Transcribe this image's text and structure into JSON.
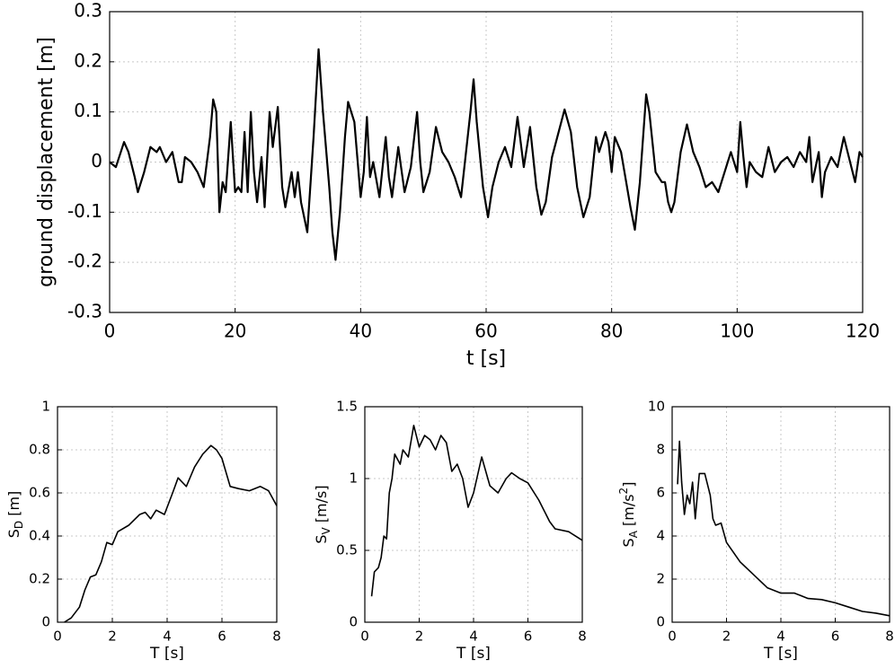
{
  "chart_data": [
    {
      "type": "line",
      "xlabel": "t [s]",
      "ylabel": "ground displacement [m]",
      "color": "#000000",
      "grid": true,
      "xlim": [
        0,
        120
      ],
      "xticks": [
        0,
        20,
        40,
        60,
        80,
        100,
        120
      ],
      "ylim": [
        -0.3,
        0.3
      ],
      "yticks": [
        -0.3,
        -0.2,
        -0.1,
        0,
        0.1,
        0.2,
        0.3
      ],
      "x": [
        0,
        1,
        2.3,
        3,
        4,
        4.5,
        5.5,
        6.5,
        7.5,
        8,
        9,
        10,
        11,
        11.5,
        12,
        13,
        14,
        15,
        16,
        16.5,
        17,
        17.5,
        18,
        18.5,
        19.3,
        20,
        20.5,
        21,
        21.5,
        22,
        22.5,
        23,
        23.5,
        24.2,
        24.7,
        25.5,
        26,
        26.8,
        27.5,
        28,
        29,
        29.5,
        30,
        30.5,
        31.5,
        32.5,
        33.3,
        34,
        35,
        35.5,
        36,
        36.7,
        37.5,
        38,
        39,
        40,
        40.5,
        41,
        41.5,
        42,
        43,
        44,
        44.5,
        45,
        46,
        47,
        48,
        49,
        49.5,
        50,
        51,
        52,
        53,
        54,
        55,
        56,
        57.5,
        58,
        58.5,
        59.5,
        60.3,
        61,
        62,
        63,
        64,
        65,
        66,
        67,
        68,
        68.8,
        69.5,
        70.5,
        72.5,
        73.5,
        74.5,
        75.5,
        76.5,
        77.5,
        78,
        79,
        79.5,
        80,
        80.5,
        81.5,
        83,
        83.7,
        84.5,
        85.5,
        86,
        87,
        88,
        88.5,
        89,
        89.5,
        90,
        90.5,
        91,
        92,
        93,
        94,
        95,
        96,
        97,
        98,
        99,
        100,
        100.5,
        101,
        101.5,
        102,
        103,
        104,
        105,
        106,
        107,
        108,
        109,
        110,
        111,
        111.5,
        112,
        113,
        113.5,
        114,
        115,
        116,
        117,
        118,
        118.8,
        119.5,
        120
      ],
      "values": [
        0,
        -0.01,
        0.04,
        0.02,
        -0.03,
        -0.06,
        -0.02,
        0.03,
        0.02,
        0.03,
        0,
        0.02,
        -0.04,
        -0.04,
        0.01,
        0,
        -0.02,
        -0.05,
        0.05,
        0.125,
        0.1,
        -0.1,
        -0.04,
        -0.06,
        0.08,
        -0.06,
        -0.05,
        -0.06,
        0.06,
        -0.06,
        0.1,
        -0.02,
        -0.08,
        0.01,
        -0.09,
        0.1,
        0.03,
        0.11,
        -0.05,
        -0.09,
        -0.02,
        -0.07,
        -0.02,
        -0.08,
        -0.14,
        0.05,
        0.225,
        0.1,
        -0.05,
        -0.14,
        -0.195,
        -0.1,
        0.05,
        0.12,
        0.08,
        -0.07,
        -0.02,
        0.09,
        -0.03,
        0,
        -0.07,
        0.05,
        -0.03,
        -0.07,
        0.03,
        -0.06,
        -0.01,
        0.1,
        0,
        -0.06,
        -0.02,
        0.07,
        0.02,
        0,
        -0.03,
        -0.07,
        0.1,
        0.165,
        0.08,
        -0.05,
        -0.11,
        -0.05,
        0,
        0.03,
        -0.01,
        0.09,
        -0.01,
        0.07,
        -0.05,
        -0.105,
        -0.08,
        0.01,
        0.105,
        0.06,
        -0.05,
        -0.11,
        -0.07,
        0.05,
        0.02,
        0.06,
        0.04,
        -0.02,
        0.05,
        0.02,
        -0.09,
        -0.135,
        -0.04,
        0.135,
        0.1,
        -0.02,
        -0.04,
        -0.04,
        -0.08,
        -0.1,
        -0.08,
        -0.03,
        0.02,
        0.075,
        0.02,
        -0.01,
        -0.05,
        -0.04,
        -0.06,
        -0.02,
        0.02,
        -0.02,
        0.08,
        0.01,
        -0.05,
        0,
        -0.02,
        -0.03,
        0.03,
        -0.02,
        0,
        0.01,
        -0.01,
        0.02,
        0,
        0.05,
        -0.04,
        0.02,
        -0.07,
        -0.02,
        0.01,
        -0.01,
        0.05,
        0,
        -0.04,
        0.02,
        0.01
      ]
    },
    {
      "type": "line",
      "xlabel": "T [s]",
      "ylabel": {
        "main": "S",
        "sub": "D",
        "rest": " [m]"
      },
      "color": "#000000",
      "grid": true,
      "xlim": [
        0,
        8
      ],
      "xticks": [
        0,
        2,
        4,
        6,
        8
      ],
      "ylim": [
        0,
        1
      ],
      "yticks": [
        0,
        0.2,
        0.4,
        0.6,
        0.8,
        1
      ],
      "x": [
        0.25,
        0.5,
        0.8,
        1,
        1.2,
        1.4,
        1.6,
        1.8,
        2,
        2.2,
        2.6,
        3,
        3.2,
        3.4,
        3.6,
        3.9,
        4.2,
        4.4,
        4.7,
        5,
        5.3,
        5.6,
        5.8,
        6,
        6.3,
        6.6,
        7,
        7.4,
        7.7,
        8
      ],
      "values": [
        0,
        0.02,
        0.07,
        0.15,
        0.21,
        0.22,
        0.28,
        0.37,
        0.36,
        0.42,
        0.45,
        0.5,
        0.51,
        0.48,
        0.52,
        0.5,
        0.6,
        0.67,
        0.63,
        0.72,
        0.78,
        0.82,
        0.8,
        0.76,
        0.63,
        0.62,
        0.61,
        0.63,
        0.61,
        0.54
      ]
    },
    {
      "type": "line",
      "xlabel": "T [s]",
      "ylabel": {
        "main": "S",
        "sub": "V",
        "rest": " [m/s]"
      },
      "color": "#000000",
      "grid": true,
      "xlim": [
        0,
        8
      ],
      "xticks": [
        0,
        2,
        4,
        6,
        8
      ],
      "ylim": [
        0,
        1.5
      ],
      "yticks": [
        0,
        0.5,
        1,
        1.5
      ],
      "x": [
        0.25,
        0.35,
        0.5,
        0.6,
        0.7,
        0.8,
        0.9,
        1,
        1.1,
        1.3,
        1.4,
        1.6,
        1.8,
        2,
        2.2,
        2.4,
        2.6,
        2.8,
        3,
        3.2,
        3.4,
        3.6,
        3.8,
        4,
        4.3,
        4.6,
        4.9,
        5.2,
        5.4,
        5.7,
        6,
        6.4,
        6.8,
        7,
        7.5,
        8
      ],
      "values": [
        0.18,
        0.35,
        0.38,
        0.45,
        0.6,
        0.58,
        0.9,
        1,
        1.17,
        1.1,
        1.2,
        1.15,
        1.37,
        1.22,
        1.3,
        1.27,
        1.2,
        1.3,
        1.25,
        1.05,
        1.1,
        1,
        0.8,
        0.9,
        1.15,
        0.95,
        0.9,
        1,
        1.04,
        1,
        0.97,
        0.85,
        0.7,
        0.65,
        0.63,
        0.57
      ]
    },
    {
      "type": "line",
      "xlabel": "T [s]",
      "ylabel": {
        "main": "S",
        "sub": "A",
        "rest": " [m/s",
        "sup": "2",
        "end": "]"
      },
      "color": "#000000",
      "grid": true,
      "xlim": [
        0,
        8
      ],
      "xticks": [
        0,
        2,
        4,
        6,
        8
      ],
      "ylim": [
        0,
        10
      ],
      "yticks": [
        0,
        2,
        4,
        6,
        8,
        10
      ],
      "x": [
        0.2,
        0.27,
        0.35,
        0.45,
        0.55,
        0.65,
        0.75,
        0.85,
        1,
        1.2,
        1.4,
        1.5,
        1.6,
        1.8,
        2,
        2.5,
        3,
        3.5,
        4,
        4.5,
        5,
        5.5,
        6,
        6.5,
        7,
        7.5,
        8
      ],
      "values": [
        6.4,
        8.4,
        6.5,
        5,
        5.9,
        5.5,
        6.5,
        4.8,
        6.9,
        6.9,
        5.9,
        4.8,
        4.5,
        4.6,
        3.7,
        2.8,
        2.2,
        1.6,
        1.35,
        1.35,
        1.1,
        1.05,
        0.9,
        0.7,
        0.5,
        0.42,
        0.3
      ]
    }
  ]
}
